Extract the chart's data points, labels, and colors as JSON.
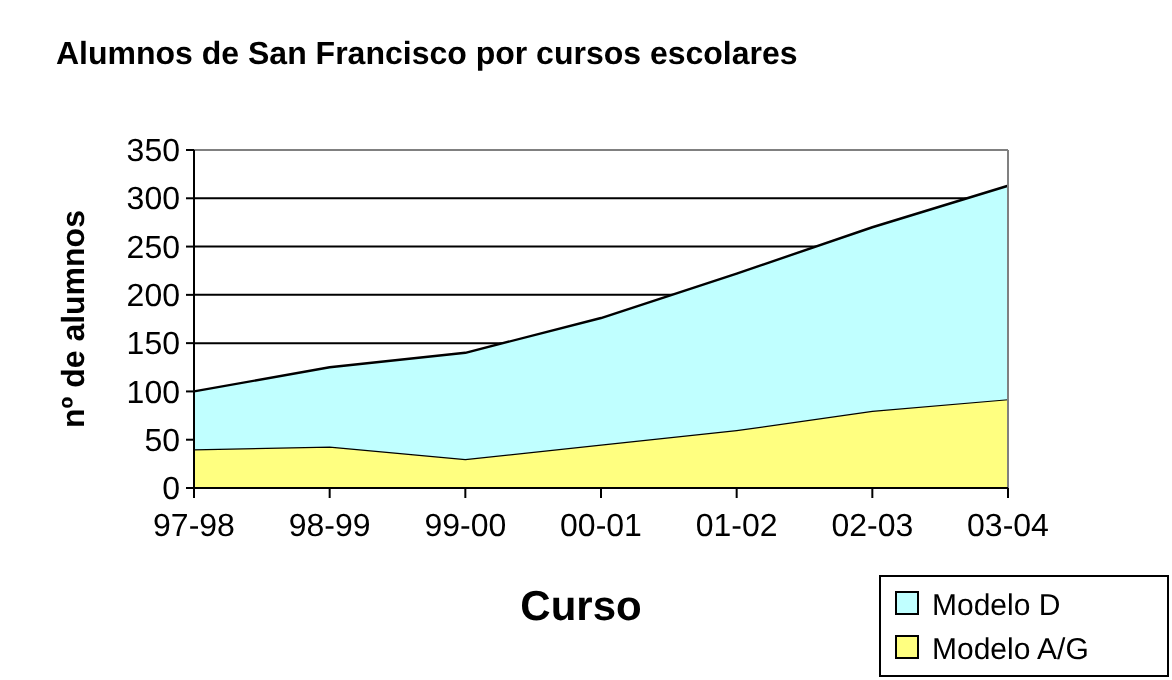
{
  "chart_data": {
    "type": "area",
    "title": "Alumnos de San Francisco por cursos escolares",
    "xlabel": "Curso",
    "ylabel": "nº de alumnos",
    "categories": [
      "97-98",
      "98-99",
      "99-00",
      "00-01",
      "01-02",
      "02-03",
      "03-04"
    ],
    "stacked": true,
    "series": [
      {
        "name": "Modelo A/G",
        "color": "#ffff80",
        "values": [
          40,
          43,
          30,
          45,
          60,
          80,
          92
        ]
      },
      {
        "name": "Modelo D",
        "color": "#c0ffff",
        "values": [
          60,
          82,
          110,
          131,
          162,
          190,
          221
        ]
      }
    ],
    "ylim": [
      0,
      350
    ],
    "yticks": [
      0,
      50,
      100,
      150,
      200,
      250,
      300,
      350
    ],
    "grid": "y",
    "legend": "bottom right"
  }
}
